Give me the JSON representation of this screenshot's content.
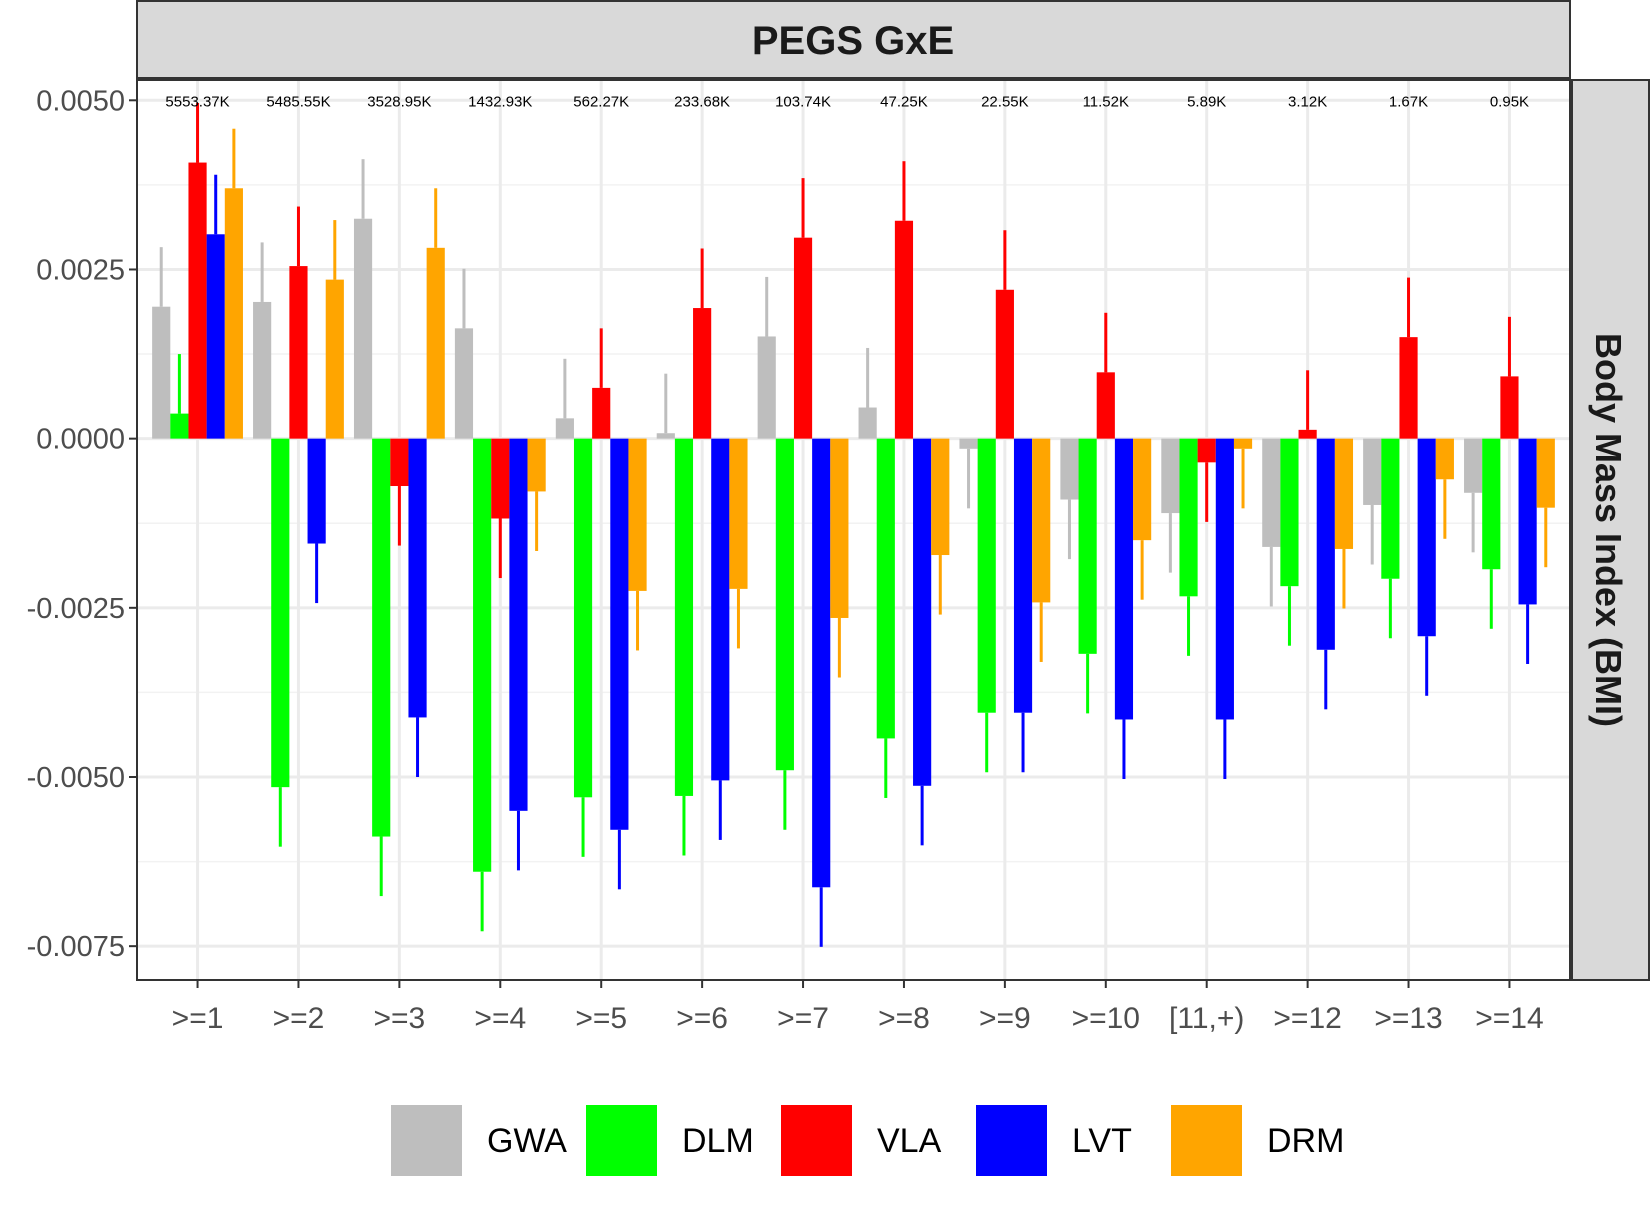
{
  "chart_data": {
    "type": "bar",
    "title": "PEGS GxE",
    "xlabel": "",
    "ylabel": "",
    "facet_label": "Body Mass Index (BMI)",
    "categories": [
      ">=1",
      ">=2",
      ">=3",
      ">=4",
      ">=5",
      ">=6",
      ">=7",
      ">=8",
      ">=9",
      ">=10",
      "[11,+)",
      ">=12",
      ">=13",
      ">=14"
    ],
    "sample_sizes": [
      "5553.37K",
      "5485.55K",
      "3528.95K",
      "1432.93K",
      "562.27K",
      "233.68K",
      "103.74K",
      "47.25K",
      "22.55K",
      "11.52K",
      "5.89K",
      "3.12K",
      "1.67K",
      "0.95K"
    ],
    "ylim": [
      -0.008,
      0.0053
    ],
    "yticks": [
      0.005,
      0.0025,
      0.0,
      -0.0025,
      -0.005,
      -0.0075
    ],
    "ytick_labels": [
      "0.0050",
      "0.0025",
      "0.0000",
      "-0.0025",
      "-0.0050",
      "-0.0075"
    ],
    "grid": true,
    "legend_position": "bottom",
    "error_bars": "one-sided, extending away from zero",
    "series": [
      {
        "name": "GWA",
        "color": "#bebebe",
        "values": [
          0.00195,
          0.00202,
          0.00325,
          0.00163,
          0.0003,
          8e-05,
          0.00151,
          0.00046,
          -0.00015,
          -0.0009,
          -0.0011,
          -0.0016,
          -0.00098,
          -0.0008
        ],
        "errors": [
          0.00088,
          0.00088,
          0.00088,
          0.00088,
          0.00088,
          0.00088,
          0.00088,
          0.00088,
          0.00088,
          0.00088,
          0.00088,
          0.00088,
          0.00088,
          0.00088
        ]
      },
      {
        "name": "DLM",
        "color": "#00ff00",
        "values": [
          0.00037,
          -0.00515,
          -0.00588,
          -0.0064,
          -0.0053,
          -0.00528,
          -0.0049,
          -0.00443,
          -0.00405,
          -0.00318,
          -0.00233,
          -0.00218,
          -0.00207,
          -0.00193
        ],
        "errors": [
          0.00088,
          0.00088,
          0.00088,
          0.00088,
          0.00088,
          0.00088,
          0.00088,
          0.00088,
          0.00088,
          0.00088,
          0.00088,
          0.00088,
          0.00088,
          0.00088
        ]
      },
      {
        "name": "VLA",
        "color": "#ff0000",
        "values": [
          0.00408,
          0.00255,
          -0.0007,
          -0.00118,
          0.00075,
          0.00193,
          0.00297,
          0.00322,
          0.0022,
          0.00098,
          -0.00035,
          0.00013,
          0.0015,
          0.00092
        ],
        "errors": [
          0.00088,
          0.00088,
          0.00088,
          0.00088,
          0.00088,
          0.00088,
          0.00088,
          0.00088,
          0.00088,
          0.00088,
          0.00088,
          0.00088,
          0.00088,
          0.00088
        ]
      },
      {
        "name": "LVT",
        "color": "#0000ff",
        "values": [
          0.00302,
          -0.00155,
          -0.00412,
          -0.0055,
          -0.00578,
          -0.00505,
          -0.00663,
          -0.00513,
          -0.00405,
          -0.00415,
          -0.00415,
          -0.00312,
          -0.00292,
          -0.00245
        ],
        "errors": [
          0.00088,
          0.00088,
          0.00088,
          0.00088,
          0.00088,
          0.00088,
          0.00088,
          0.00088,
          0.00088,
          0.00088,
          0.00088,
          0.00088,
          0.00088,
          0.00088
        ]
      },
      {
        "name": "DRM",
        "color": "#ffa500",
        "values": [
          0.0037,
          0.00235,
          0.00282,
          -0.00078,
          -0.00225,
          -0.00222,
          -0.00265,
          -0.00172,
          -0.00242,
          -0.0015,
          -0.00015,
          -0.00163,
          -0.0006,
          -0.00102
        ],
        "errors": [
          0.00088,
          0.00088,
          0.00088,
          0.00088,
          0.00088,
          0.00088,
          0.00088,
          0.00088,
          0.00088,
          0.00088,
          0.00088,
          0.00088,
          0.00088,
          0.00088
        ]
      }
    ]
  }
}
